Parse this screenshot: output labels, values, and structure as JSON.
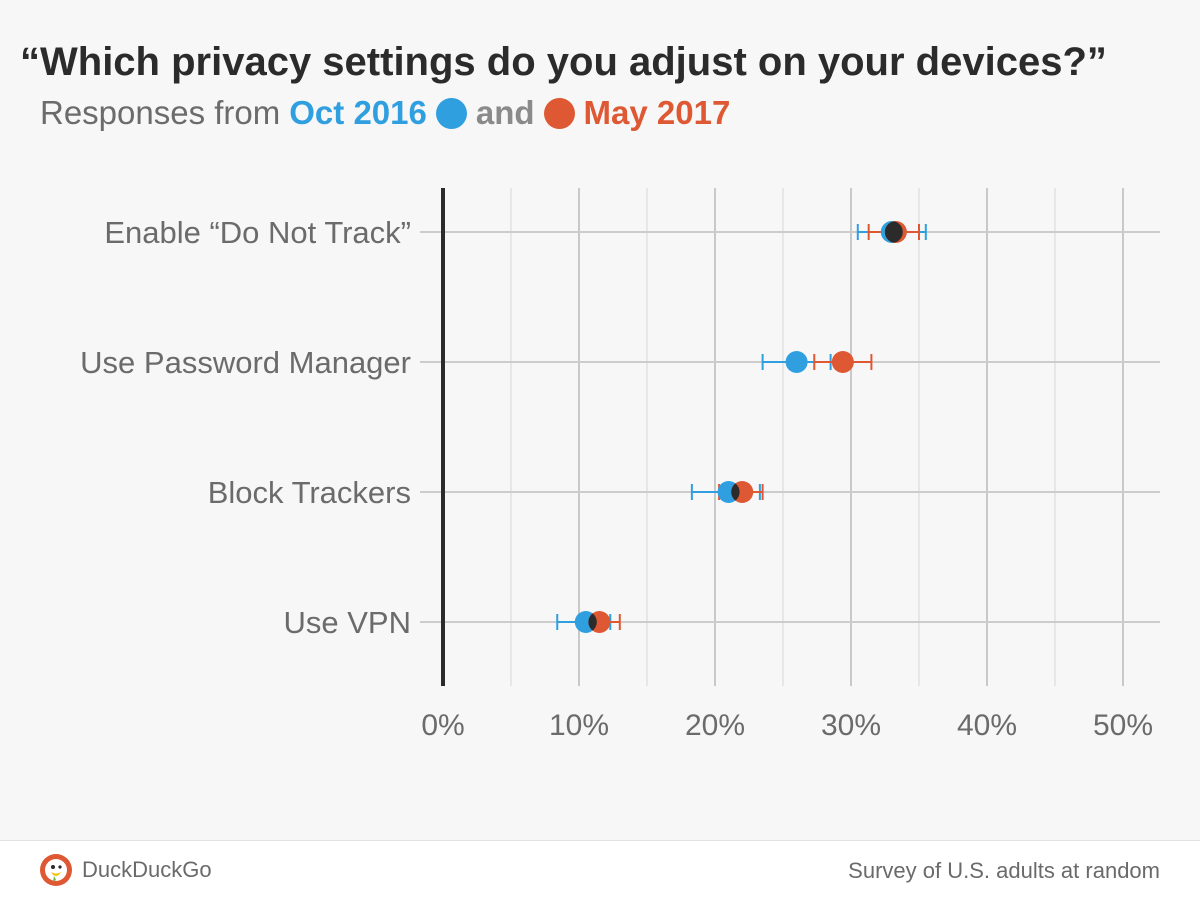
{
  "header": {
    "title": "“Which privacy settings do you adjust on your devices?”",
    "subtitle_prefix": "Responses from",
    "series1_label": "Oct 2016",
    "connector": "and",
    "series2_label": "May 2017"
  },
  "colors": {
    "series1": "#2f9fe0",
    "series2": "#de5833",
    "overlap": "#2b2b2b",
    "grid": "#cccccc",
    "axis": "#2b2b2b",
    "text": "#6b6b6b"
  },
  "footer": {
    "brand": "DuckDuckGo",
    "logo_icon": "duckduckgo-logo-icon",
    "source": "Survey of U.S. adults at random"
  },
  "chart_data": {
    "type": "dot-plot",
    "title": "“Which privacy settings do you adjust on your devices?”",
    "subtitle": "Responses from Oct 2016 and May 2017",
    "categories": [
      "Enable “Do Not Track”",
      "Use Password Manager",
      "Block Trackers",
      "Use VPN"
    ],
    "x_ticks": [
      "0%",
      "10%",
      "20%",
      "30%",
      "40%",
      "50%"
    ],
    "xlim": [
      0,
      53
    ],
    "grid": true,
    "legend": "subtitle",
    "series": [
      {
        "name": "Oct 2016",
        "values": [
          33.0,
          26.0,
          21.0,
          10.5
        ],
        "error_low": [
          30.5,
          23.5,
          18.3,
          8.4
        ],
        "error_high": [
          35.5,
          28.5,
          23.3,
          12.3
        ]
      },
      {
        "name": "May 2017",
        "values": [
          33.3,
          29.4,
          22.0,
          11.5
        ],
        "error_low": [
          31.3,
          27.3,
          20.3,
          10.0
        ],
        "error_high": [
          35.0,
          31.5,
          23.5,
          13.0
        ]
      }
    ]
  }
}
